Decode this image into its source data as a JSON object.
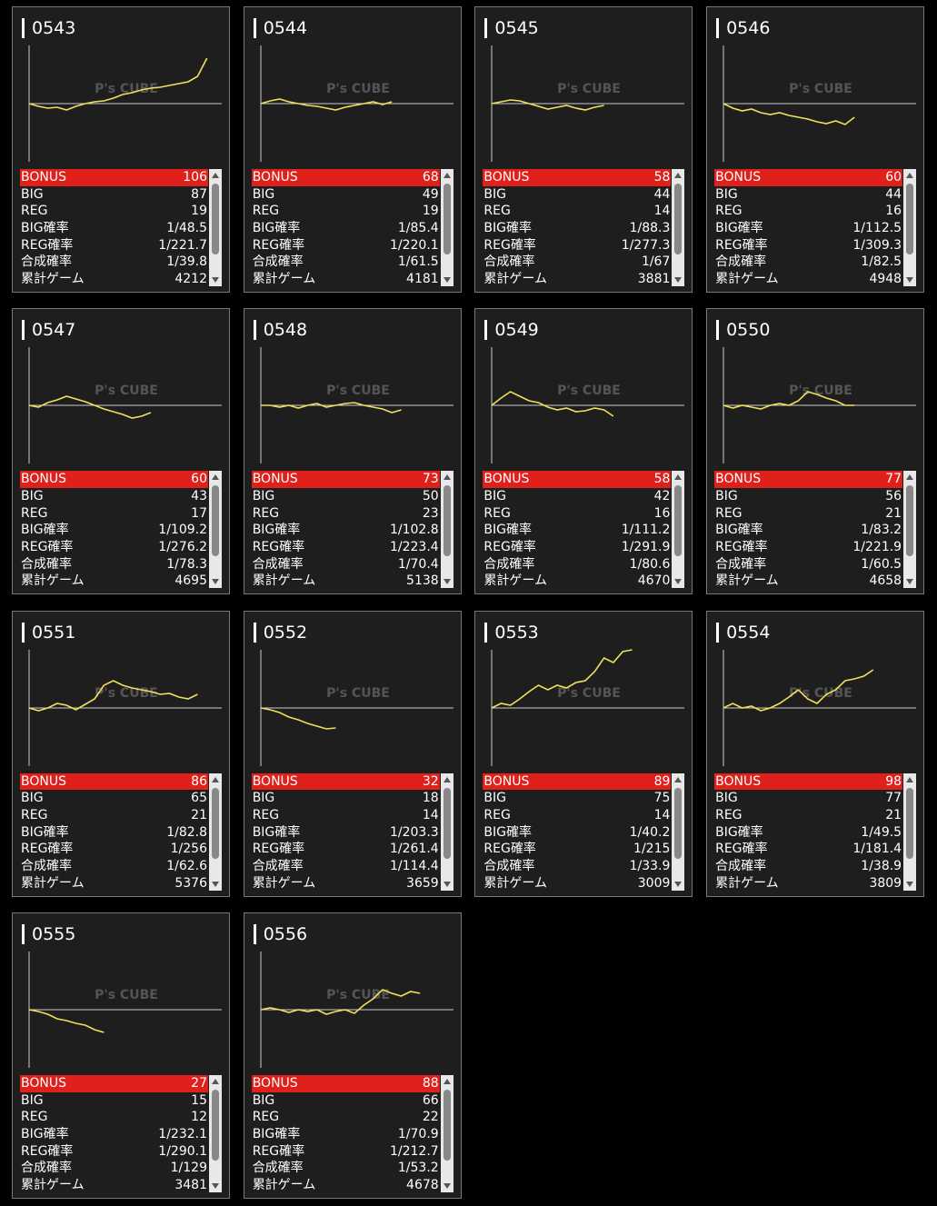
{
  "watermark": "P's CUBE",
  "row_labels": [
    "BONUS",
    "BIG",
    "REG",
    "BIG確率",
    "REG確率",
    "合成確率",
    "累計ゲーム"
  ],
  "cards": [
    {
      "id": "0543",
      "values": [
        106,
        87,
        19,
        "1/48.5",
        "1/221.7",
        "1/39.8",
        4212
      ],
      "graph": [
        0,
        -3,
        -5,
        -4,
        -7,
        -3,
        0,
        2,
        3,
        6,
        10,
        12,
        15,
        17,
        18,
        20,
        22,
        24,
        30,
        50
      ]
    },
    {
      "id": "0544",
      "values": [
        68,
        49,
        19,
        "1/85.4",
        "1/220.1",
        "1/61.5",
        4181
      ],
      "graph": [
        0,
        3,
        5,
        2,
        0,
        -2,
        -3,
        -5,
        -7,
        -4,
        -2,
        0,
        2,
        -1,
        2
      ]
    },
    {
      "id": "0545",
      "values": [
        58,
        44,
        14,
        "1/88.3",
        "1/277.3",
        "1/67",
        3881
      ],
      "graph": [
        0,
        2,
        4,
        3,
        0,
        -3,
        -6,
        -4,
        -2,
        -5,
        -7,
        -4,
        -2
      ]
    },
    {
      "id": "0546",
      "values": [
        60,
        44,
        16,
        "1/112.5",
        "1/309.3",
        "1/82.5",
        4948
      ],
      "graph": [
        0,
        -5,
        -8,
        -6,
        -10,
        -12,
        -10,
        -13,
        -15,
        -17,
        -20,
        -22,
        -19,
        -23,
        -15
      ]
    },
    {
      "id": "0547",
      "values": [
        60,
        43,
        17,
        "1/109.2",
        "1/276.2",
        "1/78.3",
        4695
      ],
      "graph": [
        0,
        -2,
        3,
        6,
        10,
        7,
        4,
        0,
        -4,
        -7,
        -10,
        -14,
        -12,
        -8
      ]
    },
    {
      "id": "0548",
      "values": [
        73,
        50,
        23,
        "1/102.8",
        "1/223.4",
        "1/70.4",
        5138
      ],
      "graph": [
        0,
        0,
        -2,
        0,
        -3,
        0,
        2,
        -2,
        0,
        2,
        3,
        0,
        -2,
        -4,
        -8,
        -5
      ]
    },
    {
      "id": "0549",
      "values": [
        58,
        42,
        16,
        "1/111.2",
        "1/291.9",
        "1/80.6",
        4670
      ],
      "graph": [
        0,
        8,
        15,
        10,
        5,
        3,
        -2,
        -5,
        -3,
        -7,
        -6,
        -3,
        -5,
        -12
      ]
    },
    {
      "id": "0550",
      "values": [
        77,
        56,
        21,
        "1/83.2",
        "1/221.9",
        "1/60.5",
        4658
      ],
      "graph": [
        0,
        -3,
        0,
        -2,
        -4,
        0,
        2,
        0,
        5,
        15,
        12,
        8,
        5,
        0,
        0
      ]
    },
    {
      "id": "0551",
      "values": [
        86,
        65,
        21,
        "1/82.8",
        "1/256",
        "1/62.6",
        5376
      ],
      "graph": [
        0,
        -3,
        0,
        5,
        3,
        -2,
        4,
        10,
        25,
        30,
        25,
        22,
        20,
        18,
        15,
        16,
        12,
        10,
        15
      ]
    },
    {
      "id": "0552",
      "values": [
        32,
        18,
        14,
        "1/203.3",
        "1/261.4",
        "1/114.4",
        3659
      ],
      "graph": [
        0,
        -2,
        -5,
        -10,
        -13,
        -17,
        -20,
        -23,
        -22
      ]
    },
    {
      "id": "0553",
      "values": [
        89,
        75,
        14,
        "1/40.2",
        "1/215",
        "1/33.9",
        3009
      ],
      "graph": [
        0,
        5,
        3,
        10,
        18,
        25,
        20,
        25,
        22,
        28,
        30,
        40,
        55,
        50,
        62,
        64
      ]
    },
    {
      "id": "0554",
      "values": [
        98,
        77,
        21,
        "1/49.5",
        "1/181.4",
        "1/38.9",
        3809
      ],
      "graph": [
        0,
        5,
        0,
        2,
        -3,
        0,
        5,
        12,
        20,
        10,
        5,
        15,
        20,
        30,
        32,
        35,
        42
      ]
    },
    {
      "id": "0555",
      "values": [
        27,
        15,
        12,
        "1/232.1",
        "1/290.1",
        "1/129",
        3481
      ],
      "graph": [
        0,
        -2,
        -5,
        -10,
        -12,
        -15,
        -17,
        -22,
        -25
      ]
    },
    {
      "id": "0556",
      "values": [
        88,
        66,
        22,
        "1/70.9",
        "1/212.7",
        "1/53.2",
        4678
      ],
      "graph": [
        0,
        2,
        0,
        -3,
        0,
        -2,
        0,
        -5,
        -2,
        0,
        -4,
        5,
        12,
        22,
        18,
        15,
        20,
        18
      ]
    }
  ]
}
